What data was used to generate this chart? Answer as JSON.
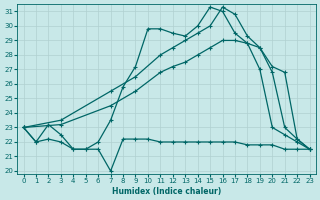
{
  "xlabel": "Humidex (Indice chaleur)",
  "bg_color": "#c8e8e8",
  "line_color": "#006666",
  "grid_color": "#b0d0d0",
  "xlim": [
    -0.5,
    23.5
  ],
  "ylim": [
    19.8,
    31.5
  ],
  "xticks": [
    0,
    1,
    2,
    3,
    4,
    5,
    6,
    7,
    8,
    9,
    10,
    11,
    12,
    13,
    14,
    15,
    16,
    17,
    18,
    19,
    20,
    21,
    22,
    23
  ],
  "yticks": [
    20,
    21,
    22,
    23,
    24,
    25,
    26,
    27,
    28,
    29,
    30,
    31
  ],
  "line1_x": [
    0,
    1,
    2,
    3,
    4,
    5,
    6,
    7,
    8,
    9,
    10,
    11,
    12,
    13,
    14,
    15,
    16,
    17,
    18,
    19,
    20,
    21,
    22,
    23
  ],
  "line1_y": [
    23.0,
    22.0,
    22.2,
    22.0,
    21.5,
    21.5,
    21.5,
    20.0,
    22.2,
    22.2,
    22.2,
    22.0,
    22.0,
    22.0,
    22.0,
    22.0,
    22.0,
    22.0,
    21.8,
    21.8,
    21.8,
    21.5,
    21.5,
    21.5
  ],
  "line2_x": [
    0,
    1,
    2,
    3,
    4,
    5,
    6,
    7,
    8,
    9,
    10,
    11,
    12,
    13,
    14,
    15,
    16,
    17,
    18,
    19,
    20,
    21,
    22,
    23
  ],
  "line2_y": [
    23.0,
    22.0,
    23.2,
    22.5,
    21.5,
    21.5,
    22.0,
    23.5,
    25.8,
    27.2,
    29.8,
    29.8,
    29.5,
    29.3,
    30.0,
    31.3,
    31.0,
    29.5,
    28.8,
    27.0,
    23.0,
    22.5,
    22.0,
    21.5
  ],
  "line3_x": [
    0,
    3,
    7,
    9,
    11,
    12,
    13,
    14,
    15,
    16,
    17,
    18,
    19,
    20,
    21,
    22,
    23
  ],
  "line3_y": [
    23.0,
    23.2,
    24.5,
    25.5,
    26.8,
    27.2,
    27.5,
    28.0,
    28.5,
    29.0,
    29.0,
    28.8,
    28.5,
    27.2,
    26.8,
    22.2,
    21.5
  ],
  "line4_x": [
    0,
    3,
    7,
    9,
    11,
    12,
    13,
    14,
    15,
    16,
    17,
    18,
    19,
    20,
    21,
    22,
    23
  ],
  "line4_y": [
    23.0,
    23.5,
    25.5,
    26.5,
    28.0,
    28.5,
    29.0,
    29.5,
    30.0,
    31.3,
    30.8,
    29.3,
    28.5,
    26.8,
    23.0,
    22.2,
    21.5
  ]
}
